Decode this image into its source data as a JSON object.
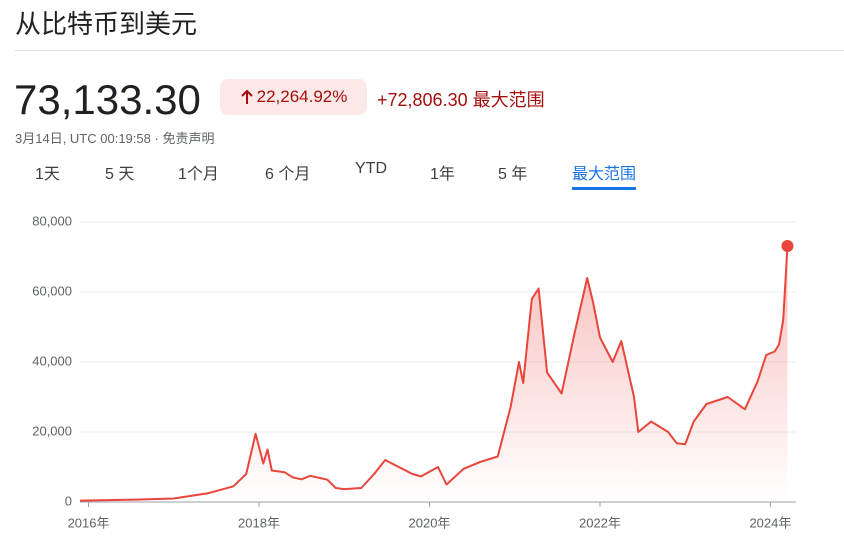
{
  "header": {
    "title": "从比特币到美元",
    "price": "73,133.30",
    "change_percent": "22,264.92%",
    "change": "+72,806.30",
    "period": "最大范围",
    "timestamp": "3月14日, UTC 00:19:58",
    "separator": "·",
    "disclaimer": "免责声明"
  },
  "tabs": {
    "items": [
      "1天",
      "5 天",
      "1个月",
      "6 个月",
      "YTD",
      "1年",
      "5 年",
      "最大范围"
    ],
    "selected": 7
  },
  "chart_data": {
    "type": "line",
    "color": "#e8453c",
    "x": [
      2015.9,
      2016.5,
      2017.0,
      2017.4,
      2017.7,
      2017.85,
      2017.96,
      2018.05,
      2018.1,
      2018.15,
      2018.3,
      2018.4,
      2018.5,
      2018.6,
      2018.8,
      2018.9,
      2019.0,
      2019.2,
      2019.35,
      2019.48,
      2019.6,
      2019.8,
      2019.9,
      2020.1,
      2020.2,
      2020.4,
      2020.6,
      2020.8,
      2020.95,
      2021.05,
      2021.1,
      2021.2,
      2021.28,
      2021.38,
      2021.55,
      2021.7,
      2021.85,
      2021.92,
      2022.0,
      2022.15,
      2022.25,
      2022.4,
      2022.45,
      2022.6,
      2022.8,
      2022.9,
      2023.0,
      2023.1,
      2023.25,
      2023.5,
      2023.7,
      2023.85,
      2023.95,
      2024.05,
      2024.1,
      2024.15,
      2024.2
    ],
    "values": [
      400,
      650,
      1000,
      2500,
      4500,
      8000,
      19500,
      11000,
      15000,
      9000,
      8500,
      7000,
      6500,
      7500,
      6400,
      4000,
      3700,
      4000,
      8000,
      12000,
      10500,
      8000,
      7300,
      10000,
      5000,
      9500,
      11500,
      13000,
      27000,
      40000,
      34000,
      58000,
      61000,
      37000,
      31000,
      48000,
      64000,
      57000,
      47000,
      40000,
      46000,
      30000,
      20000,
      23000,
      20000,
      16800,
      16500,
      23000,
      28000,
      30000,
      26500,
      34500,
      42000,
      43000,
      45000,
      52000,
      73133.3
    ],
    "xlim": [
      2015.9,
      2024.3
    ],
    "xticks": [
      {
        "value": 2016,
        "label": "2016年"
      },
      {
        "value": 2018,
        "label": "2018年"
      },
      {
        "value": 2020,
        "label": "2020年"
      },
      {
        "value": 2022,
        "label": "2022年"
      },
      {
        "value": 2024,
        "label": "2024年"
      }
    ],
    "ylim": [
      0,
      80000
    ],
    "yticks": [
      0,
      {
        "value": 20000,
        "label": "20,000"
      },
      {
        "value": 40000,
        "label": "40,000"
      },
      {
        "value": 60000,
        "label": "60,000"
      },
      {
        "value": 80000,
        "label": "80,000"
      }
    ],
    "grid": true
  }
}
